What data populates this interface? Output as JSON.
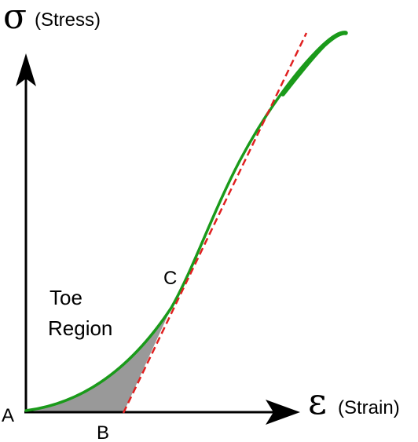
{
  "y_axis": {
    "symbol": "σ",
    "label": "(Stress)"
  },
  "x_axis": {
    "symbol": "ε",
    "label": "(Strain)"
  },
  "points": {
    "a": "A",
    "b": "B",
    "c": "C"
  },
  "region": {
    "line1": "Toe",
    "line2": "Region"
  },
  "colors": {
    "curve": "#1a9a1a",
    "tangent": "#e02020",
    "toe_fill": "#999999",
    "axis": "#000000"
  }
}
